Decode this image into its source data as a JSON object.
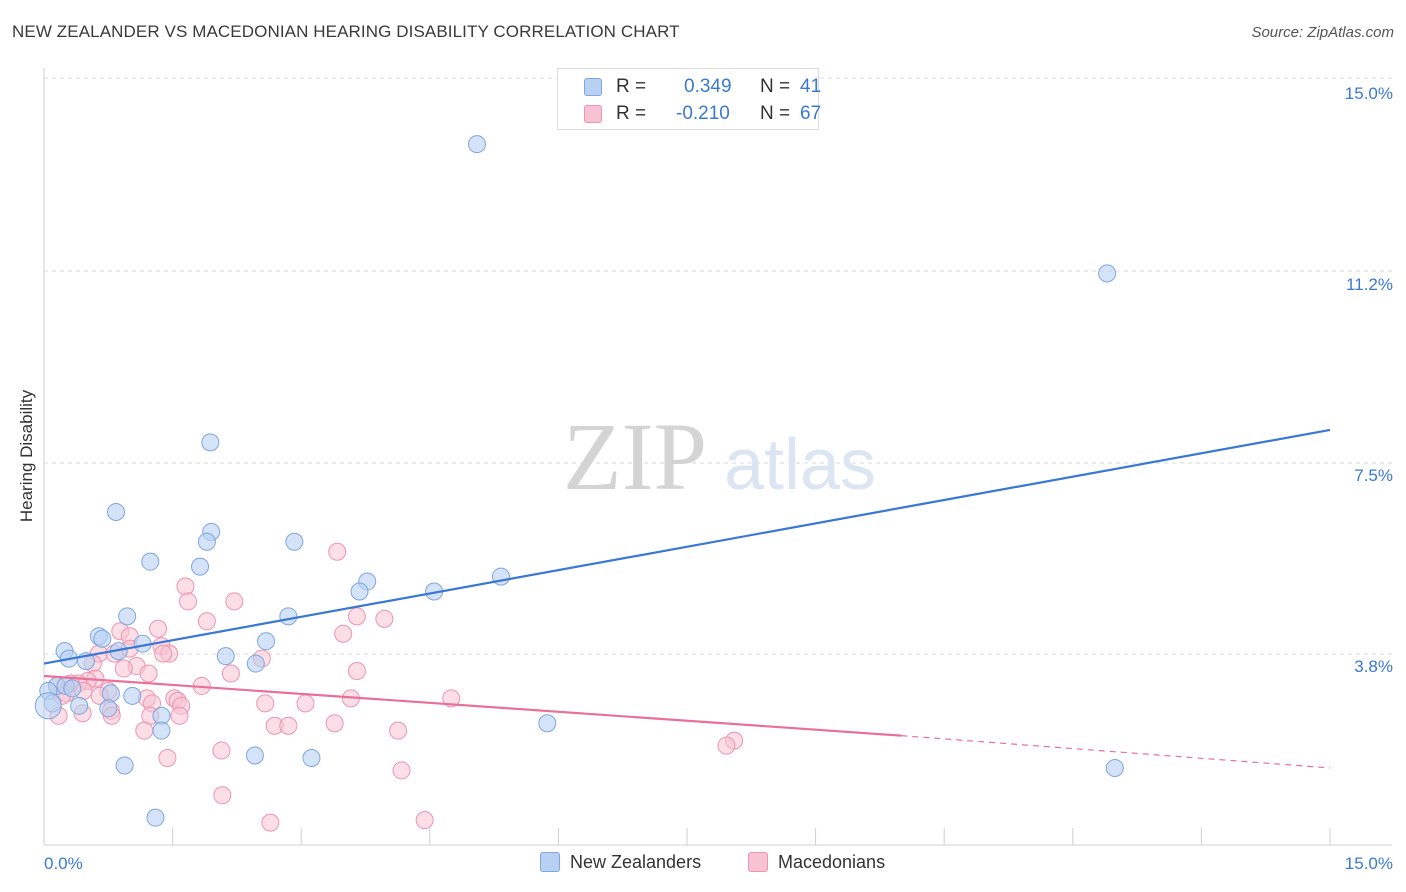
{
  "title": "NEW ZEALANDER VS MACEDONIAN HEARING DISABILITY CORRELATION CHART",
  "source": "Source: ZipAtlas.com",
  "watermark": {
    "zip": "ZIP",
    "atlas": "atlas"
  },
  "legend": {
    "series1": {
      "r_label": "R =",
      "r_value": "0.349",
      "n_label": "N =",
      "n_value": "41"
    },
    "series2": {
      "r_label": "R =",
      "r_value": "-0.210",
      "n_label": "N =",
      "n_value": "67"
    }
  },
  "chart_data": {
    "type": "scatter",
    "title": "NEW ZEALANDER VS MACEDONIAN HEARING DISABILITY CORRELATION CHART",
    "xlabel": "",
    "ylabel": "Hearing Disability",
    "xlim": [
      0,
      15
    ],
    "ylim": [
      0,
      15.7
    ],
    "x_tick_labels": [
      "0.0%",
      "15.0%"
    ],
    "y_ticks": [
      3.8,
      7.5,
      11.2,
      15.0
    ],
    "y_tick_labels": [
      "3.8%",
      "7.5%",
      "11.2%",
      "15.0%"
    ],
    "colors": {
      "series1_fill": "#b8d0f2",
      "series1_stroke": "#7ea6e0",
      "series1_line": "#3a78d6",
      "series2_fill": "#f7c2d2",
      "series2_stroke": "#ee94b0",
      "series2_line": "#e8719a",
      "tick_label": "#3a78d6",
      "grid": "#d8d8d8"
    },
    "series": [
      {
        "name": "New Zealanders",
        "r": 0.349,
        "n": 41,
        "trend": {
          "x0": 0,
          "y0": 3.65,
          "x1": 15,
          "y1": 8.35
        },
        "points": [
          [
            5.05,
            14.1
          ],
          [
            12.4,
            11.5
          ],
          [
            1.94,
            8.1
          ],
          [
            0.84,
            6.7
          ],
          [
            1.95,
            6.3
          ],
          [
            1.9,
            6.1
          ],
          [
            2.92,
            6.1
          ],
          [
            1.24,
            5.7
          ],
          [
            1.82,
            5.6
          ],
          [
            5.33,
            5.4
          ],
          [
            3.77,
            5.3
          ],
          [
            3.68,
            5.1
          ],
          [
            4.55,
            5.1
          ],
          [
            0.97,
            4.6
          ],
          [
            2.85,
            4.6
          ],
          [
            0.64,
            4.2
          ],
          [
            0.68,
            4.15
          ],
          [
            2.59,
            4.1
          ],
          [
            1.15,
            4.05
          ],
          [
            0.24,
            3.9
          ],
          [
            0.87,
            3.9
          ],
          [
            0.29,
            3.75
          ],
          [
            2.12,
            3.8
          ],
          [
            0.49,
            3.7
          ],
          [
            2.47,
            3.65
          ],
          [
            0.15,
            3.2
          ],
          [
            0.25,
            3.2
          ],
          [
            0.33,
            3.15
          ],
          [
            0.05,
            3.1
          ],
          [
            0.78,
            3.05
          ],
          [
            1.03,
            3.0
          ],
          [
            0.1,
            2.85
          ],
          [
            0.41,
            2.8
          ],
          [
            0.75,
            2.75
          ],
          [
            1.37,
            2.6
          ],
          [
            5.87,
            2.45
          ],
          [
            1.37,
            2.3
          ],
          [
            2.46,
            1.8
          ],
          [
            3.12,
            1.75
          ],
          [
            0.94,
            1.6
          ],
          [
            12.49,
            1.55
          ],
          [
            1.3,
            0.55
          ]
        ]
      },
      {
        "name": "Macedonians",
        "r": -0.21,
        "n": 67,
        "trend": {
          "x0": 0,
          "y0": 3.4,
          "x1": 10.0,
          "y1": 2.2
        },
        "trend_dashed": {
          "x0": 10.0,
          "y0": 2.2,
          "x1": 15,
          "y1": 1.55
        },
        "points": [
          [
            3.42,
            5.9
          ],
          [
            1.65,
            5.2
          ],
          [
            1.68,
            4.9
          ],
          [
            2.22,
            4.9
          ],
          [
            3.65,
            4.6
          ],
          [
            3.97,
            4.55
          ],
          [
            1.9,
            4.5
          ],
          [
            1.33,
            4.35
          ],
          [
            0.89,
            4.3
          ],
          [
            1.0,
            4.2
          ],
          [
            3.49,
            4.25
          ],
          [
            1.37,
            4.0
          ],
          [
            1.0,
            3.95
          ],
          [
            0.64,
            3.85
          ],
          [
            1.46,
            3.85
          ],
          [
            0.82,
            3.85
          ],
          [
            1.39,
            3.85
          ],
          [
            2.54,
            3.75
          ],
          [
            0.57,
            3.65
          ],
          [
            1.08,
            3.6
          ],
          [
            0.93,
            3.55
          ],
          [
            3.65,
            3.5
          ],
          [
            1.22,
            3.45
          ],
          [
            2.18,
            3.45
          ],
          [
            0.6,
            3.35
          ],
          [
            0.51,
            3.3
          ],
          [
            0.4,
            3.25
          ],
          [
            0.31,
            3.25
          ],
          [
            0.15,
            3.2
          ],
          [
            0.46,
            3.1
          ],
          [
            1.84,
            3.2
          ],
          [
            0.26,
            3.05
          ],
          [
            0.21,
            3.0
          ],
          [
            0.75,
            3.1
          ],
          [
            0.65,
            3.0
          ],
          [
            1.2,
            2.95
          ],
          [
            1.52,
            2.95
          ],
          [
            1.56,
            2.9
          ],
          [
            4.75,
            2.95
          ],
          [
            3.58,
            2.95
          ],
          [
            1.26,
            2.85
          ],
          [
            2.58,
            2.85
          ],
          [
            3.05,
            2.85
          ],
          [
            1.6,
            2.8
          ],
          [
            0.78,
            2.7
          ],
          [
            0.45,
            2.65
          ],
          [
            0.17,
            2.6
          ],
          [
            1.24,
            2.6
          ],
          [
            0.79,
            2.6
          ],
          [
            1.58,
            2.6
          ],
          [
            3.39,
            2.45
          ],
          [
            2.69,
            2.4
          ],
          [
            2.85,
            2.4
          ],
          [
            4.13,
            2.3
          ],
          [
            1.17,
            2.3
          ],
          [
            8.05,
            2.1
          ],
          [
            7.96,
            2.0
          ],
          [
            2.07,
            1.9
          ],
          [
            1.44,
            1.75
          ],
          [
            4.17,
            1.5
          ],
          [
            2.08,
            1.0
          ],
          [
            2.64,
            0.45
          ],
          [
            4.44,
            0.5
          ]
        ]
      }
    ]
  },
  "bottom_legend": {
    "series1": "New Zealanders",
    "series2": "Macedonians"
  }
}
